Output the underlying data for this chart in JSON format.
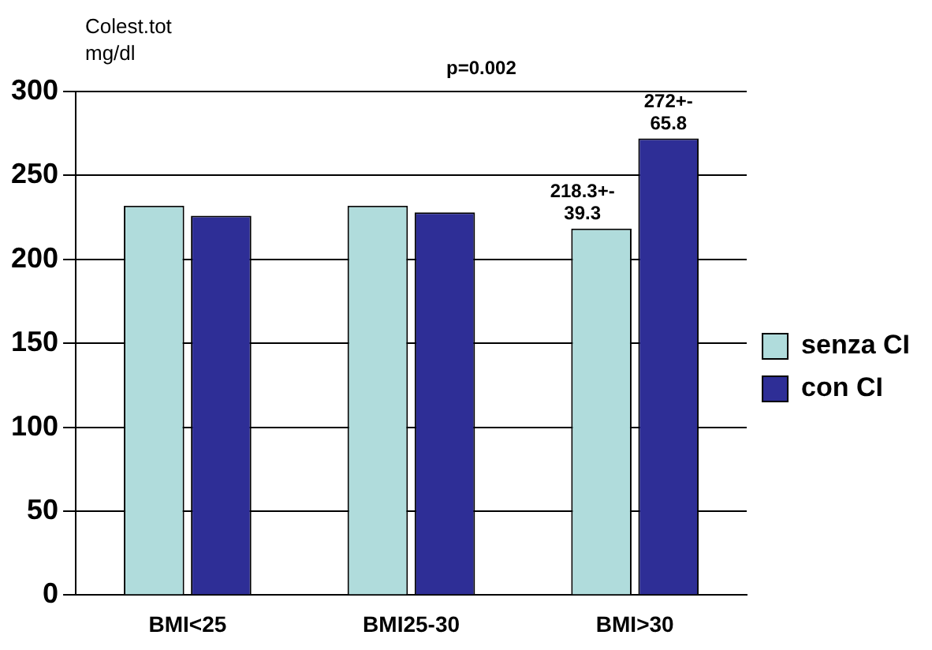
{
  "chart_data": {
    "type": "bar",
    "ylabel": "Colest.tot\nmg/dl",
    "categories": [
      "BMI<25",
      "BMI25-30",
      "BMI>30"
    ],
    "series": [
      {
        "name": "senza CI",
        "color": "#b0dcdc",
        "values": [
          232,
          232,
          218.3
        ],
        "value_labels": [
          null,
          null,
          "218.3+-\n39.3"
        ]
      },
      {
        "name": "con CI",
        "color": "#2e2e96",
        "values": [
          226,
          228,
          272
        ],
        "value_labels": [
          null,
          null,
          "272+-\n65.8"
        ]
      }
    ],
    "annotations": [
      "p=0.002"
    ],
    "ylim": [
      0,
      300
    ],
    "yticks": [
      0,
      50,
      100,
      150,
      200,
      250,
      300
    ],
    "grid": "y",
    "legend": "right"
  }
}
